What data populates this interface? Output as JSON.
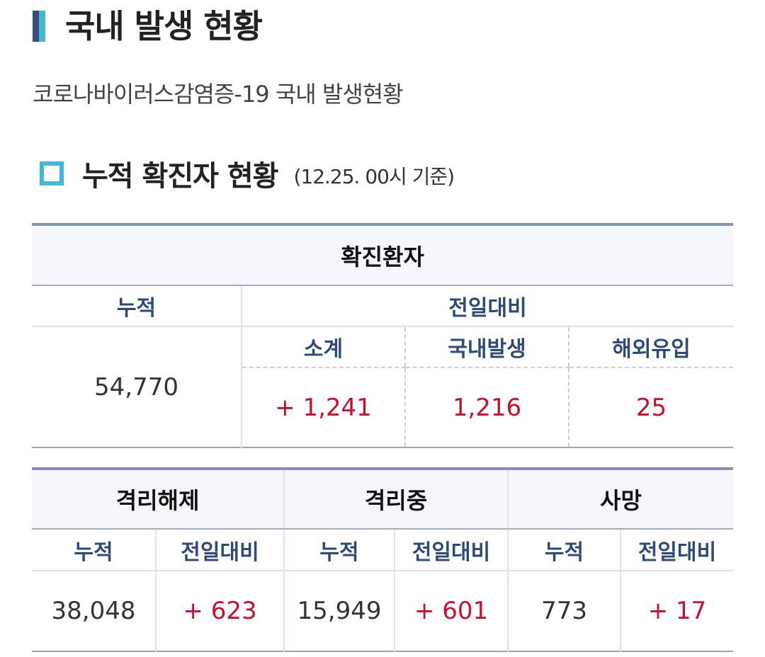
{
  "header": {
    "title": "국내 발생 현황",
    "subtitle": "코로나바이러스감염증-19 국내 발생현황"
  },
  "section": {
    "title": "누적 확진자 현황",
    "basis": "(12.25. 00시 기준)"
  },
  "confirmed": {
    "title": "확진환자",
    "cumulative_label": "누적",
    "compare_label": "전일대비",
    "cumulative_value": "54,770",
    "subtotal_label": "소계",
    "domestic_label": "국내발생",
    "overseas_label": "해외유입",
    "subtotal_value": "+ 1,241",
    "domestic_value": "1,216",
    "overseas_value": "25"
  },
  "status": {
    "released": {
      "title": "격리해제",
      "cumulative_label": "누적",
      "compare_label": "전일대비",
      "cumulative_value": "38,048",
      "compare_value": "+ 623"
    },
    "isolated": {
      "title": "격리중",
      "cumulative_label": "누적",
      "compare_label": "전일대비",
      "cumulative_value": "15,949",
      "compare_value": "+ 601"
    },
    "deaths": {
      "title": "사망",
      "cumulative_label": "누적",
      "compare_label": "전일대비",
      "cumulative_value": "773",
      "compare_value": "+ 17"
    }
  },
  "colors": {
    "accent_dark": "#3a4f7a",
    "accent_light": "#41b8d5",
    "increase_red": "#c8102e",
    "label_blue": "#2f4a7a"
  }
}
